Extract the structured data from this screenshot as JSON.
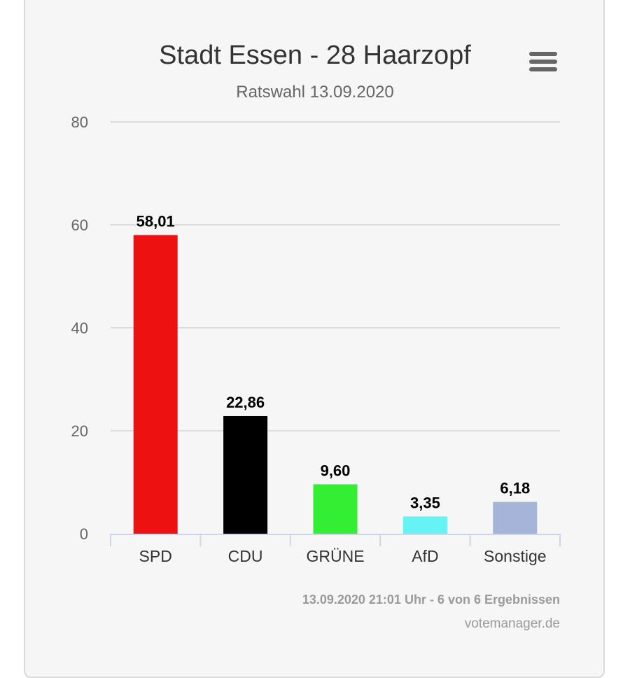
{
  "chart_data": {
    "type": "bar",
    "title": "Stadt Essen - 28 Haarzopf",
    "subtitle": "Ratswahl 13.09.2020",
    "categories": [
      "SPD",
      "CDU",
      "GRÜNE",
      "AfD",
      "Sonstige"
    ],
    "values": [
      58.01,
      22.86,
      9.6,
      3.35,
      6.18
    ],
    "value_labels": [
      "58,01",
      "22,86",
      "9,60",
      "3,35",
      "6,18"
    ],
    "colors": [
      "#ee1111",
      "#000000",
      "#33ee33",
      "#66f3f3",
      "#a4b5d9"
    ],
    "ylim": [
      0,
      80
    ],
    "yticks": [
      0,
      20,
      40,
      60,
      80
    ],
    "grid": true,
    "xlabel": "",
    "ylabel": ""
  },
  "footer": {
    "status": "13.09.2020 21:01 Uhr - 6 von 6 Ergebnissen",
    "credit": "votemanager.de"
  },
  "menu_icon": "hamburger-menu-icon"
}
